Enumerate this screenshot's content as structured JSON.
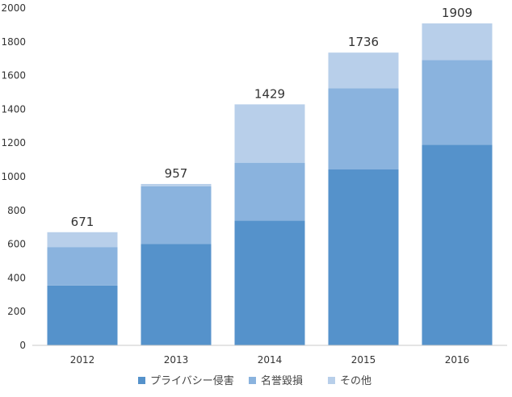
{
  "chart_data": {
    "type": "bar",
    "stacked": true,
    "categories": [
      "2012",
      "2013",
      "2014",
      "2015",
      "2016"
    ],
    "series": [
      {
        "name": "プライバシー侵害",
        "values": [
          355,
          602,
          740,
          1043,
          1190
        ],
        "color": "#5592cb"
      },
      {
        "name": "名誉毀損",
        "values": [
          228,
          341,
          343,
          482,
          502
        ],
        "color": "#8ab3de"
      },
      {
        "name": "その他",
        "values": [
          88,
          14,
          346,
          211,
          217
        ],
        "color": "#b8cfea"
      }
    ],
    "totals": [
      "671",
      "957",
      "1429",
      "1736",
      "1909"
    ],
    "ylim": [
      0,
      2000
    ],
    "yticks": [
      "0",
      "200",
      "400",
      "600",
      "800",
      "1000",
      "1200",
      "1400",
      "1600",
      "1800",
      "2000"
    ],
    "legend_position": "bottom",
    "grid": false
  }
}
